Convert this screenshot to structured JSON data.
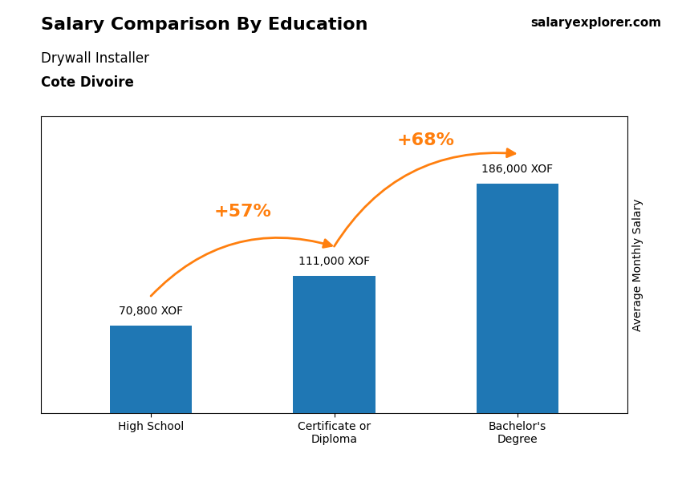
{
  "chart_data": {
    "type": "bar",
    "title": "Salary Comparison By Education",
    "subtitle": [
      "Drywall Installer",
      "Cote Divoire"
    ],
    "annotations": [
      "salaryexplorer.com"
    ],
    "ylabel": "Average Monthly Salary",
    "categories": [
      "High School",
      "Certificate or\nDiploma",
      "Bachelor's\nDegree"
    ],
    "values": [
      70800,
      111000,
      186000
    ],
    "value_labels": [
      "70,800 XOF",
      "111,000 XOF",
      "186,000 XOF"
    ],
    "data_labels": true,
    "growth_labels": [
      "+57%",
      "+68%"
    ],
    "ylim": [
      0,
      240000
    ],
    "yticks": [],
    "tick_labels": "x"
  }
}
